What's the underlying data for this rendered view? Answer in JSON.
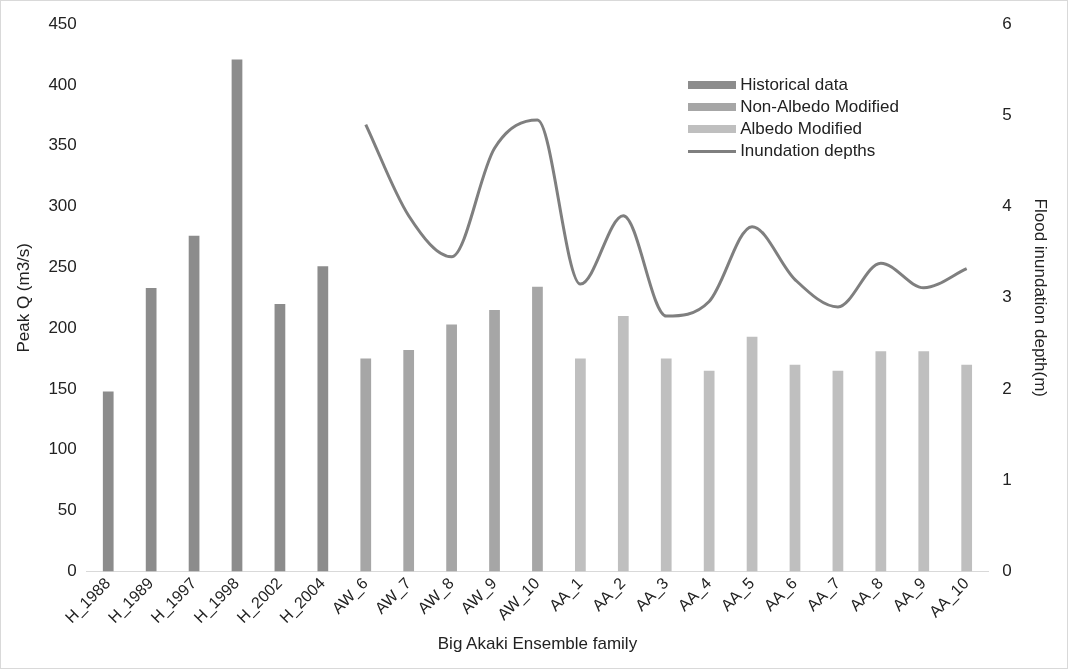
{
  "chart_data": {
    "type": "bar",
    "xlabel": "Big Akaki Ensemble family",
    "ylabel": "Peak Q (m3/s)",
    "y2label": "Flood inundation depth(m)",
    "categories": [
      "H_1988",
      "H_1989",
      "H_1997",
      "H_1998",
      "H_2002",
      "H_2004",
      "AW_6",
      "AW_7",
      "AW_8",
      "AW_9",
      "AW_10",
      "AA_1",
      "AA_2",
      "AA_3",
      "AA_4",
      "AA_5",
      "AA_6",
      "AA_7",
      "AA_8",
      "AA_9",
      "AA_10"
    ],
    "series": [
      {
        "name": "Historical data",
        "color": "#8c8c8c",
        "values": [
          148,
          233,
          276,
          421,
          220,
          251,
          null,
          null,
          null,
          null,
          null,
          null,
          null,
          null,
          null,
          null,
          null,
          null,
          null,
          null,
          null
        ]
      },
      {
        "name": "Non-Albedo Modified",
        "color": "#a6a6a6",
        "values": [
          null,
          null,
          null,
          null,
          null,
          null,
          175,
          182,
          203,
          215,
          234,
          null,
          null,
          null,
          null,
          null,
          null,
          null,
          null,
          null,
          null
        ]
      },
      {
        "name": "Albedo Modified",
        "color": "#bfbfbf",
        "values": [
          null,
          null,
          null,
          null,
          null,
          null,
          null,
          null,
          null,
          null,
          null,
          175,
          210,
          175,
          165,
          193,
          170,
          165,
          181,
          181,
          170
        ]
      },
      {
        "name": "Inundation depths",
        "type": "line",
        "axis": "y2",
        "color": "#7f7f7f",
        "values": [
          null,
          null,
          null,
          null,
          null,
          null,
          4.9,
          3.9,
          3.45,
          4.64,
          4.95,
          3.15,
          3.9,
          2.8,
          2.96,
          3.78,
          3.2,
          2.9,
          3.38,
          3.11,
          3.32
        ]
      }
    ],
    "ylim": [
      0,
      450
    ],
    "yticks": [
      0,
      50,
      100,
      150,
      200,
      250,
      300,
      350,
      400,
      450
    ],
    "y2lim": [
      0,
      6
    ],
    "y2ticks": [
      0,
      1,
      2,
      3,
      4,
      5,
      6
    ],
    "grid": false,
    "legend": "top right",
    "marker": "none",
    "line_style": "solid"
  }
}
